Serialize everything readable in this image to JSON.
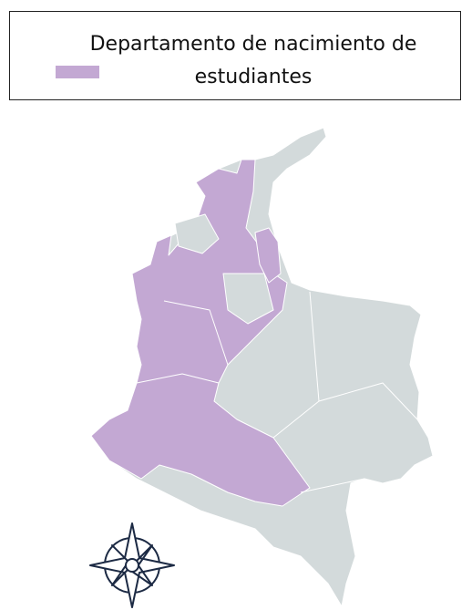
{
  "legend": {
    "title": "Departamento de nacimiento de estudiantes"
  }
}
